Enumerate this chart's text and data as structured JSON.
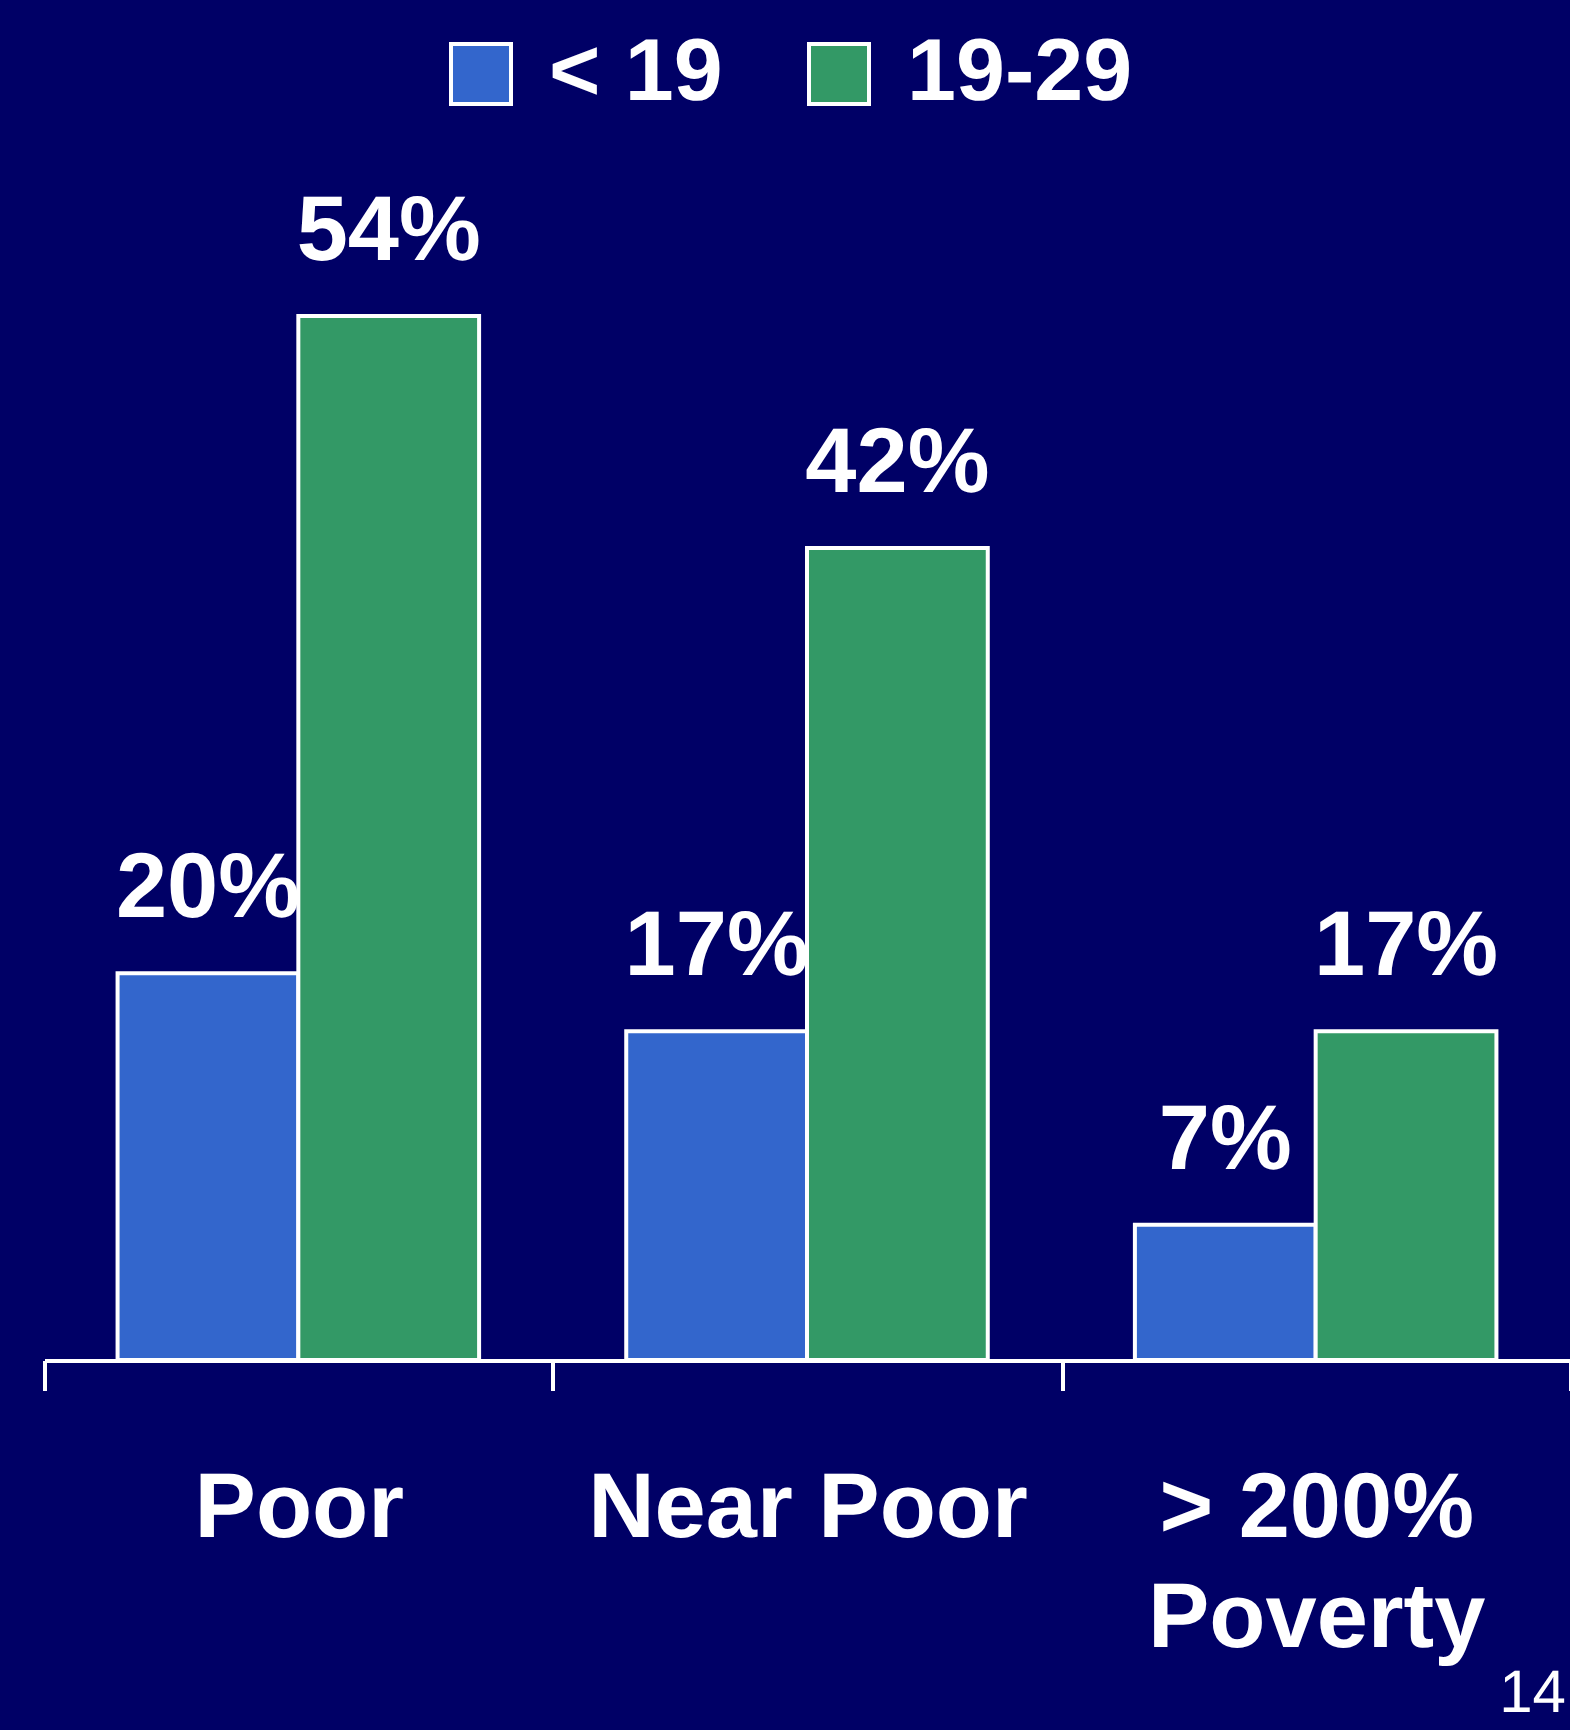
{
  "chart_data": {
    "type": "bar",
    "categories": [
      "Poor",
      "Near Poor",
      "> 200% Poverty"
    ],
    "series": [
      {
        "name": "< 19",
        "color": "#3366cc",
        "values": [
          20,
          17,
          7
        ],
        "value_labels": [
          "20%",
          "17%",
          "7%"
        ]
      },
      {
        "name": "19-29",
        "color": "#339966",
        "values": [
          54,
          42,
          17
        ],
        "value_labels": [
          "54%",
          "42%",
          "17%"
        ]
      }
    ],
    "legend": "top",
    "annotations": [
      "14"
    ]
  }
}
